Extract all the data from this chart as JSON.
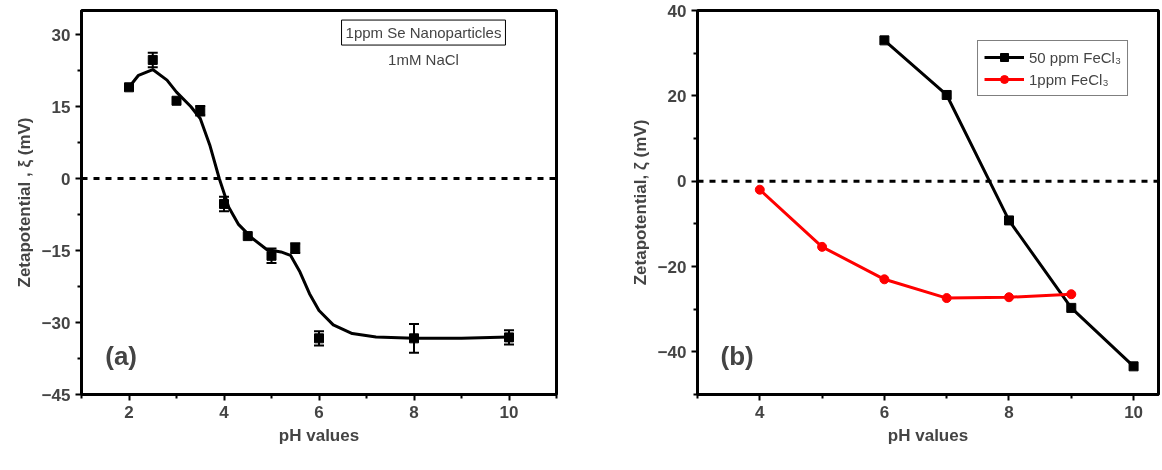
{
  "chart_data": [
    {
      "type": "scatter",
      "xlabel": "pH values",
      "ylabel": "Zetapotential , ξ (mV)",
      "xlim": [
        1,
        11
      ],
      "ylim": [
        -45,
        35
      ],
      "xticks": [
        {
          "value": 1,
          "label": null
        },
        2,
        {
          "value": 3,
          "label": null
        },
        4,
        {
          "value": 5,
          "label": null
        },
        6,
        {
          "value": 7,
          "label": null
        },
        8,
        {
          "value": 9,
          "label": null
        },
        10,
        {
          "value": 11,
          "label": null
        }
      ],
      "yticks": [
        -45,
        {
          "value": -37.5,
          "label": null
        },
        -30,
        {
          "value": -22.5,
          "label": null
        },
        -15,
        {
          "value": -7.5,
          "label": null
        },
        0,
        {
          "value": 7.5,
          "label": null
        },
        15,
        {
          "value": 22.5,
          "label": null
        },
        30
      ],
      "grid": false,
      "marker": "square",
      "series": [
        {
          "type": "scatter",
          "color": "#000000",
          "x": [
            2,
            2.5,
            3,
            3.5,
            4,
            4.5,
            5,
            5.5,
            6,
            8,
            10
          ],
          "values": [
            19,
            24.7,
            16.2,
            14.1,
            -5.3,
            -12,
            -16.1,
            -14.5,
            -33.3,
            -33.3,
            -33.1
          ],
          "errors": [
            null,
            1.5,
            null,
            1,
            1.5,
            null,
            1.5,
            1,
            1.5,
            3,
            1.5
          ]
        },
        {
          "type": "line",
          "color": "#000000",
          "marker": "none",
          "x": [
            2,
            2.2,
            2.5,
            2.8,
            3,
            3.3,
            3.5,
            3.7,
            3.9,
            4.1,
            4.3,
            4.6,
            4.9,
            5.2,
            5.4,
            5.6,
            5.8,
            6,
            6.3,
            6.7,
            7.2,
            8,
            9,
            10
          ],
          "values": [
            19,
            21.5,
            22.7,
            20.5,
            18,
            15,
            12.5,
            7,
            0,
            -6,
            -9.5,
            -12.5,
            -14.8,
            -15.3,
            -16,
            -19.5,
            -24,
            -27.5,
            -30.5,
            -32.3,
            -33,
            -33.3,
            -33.3,
            -33
          ]
        }
      ],
      "ref_lines": [
        {
          "axis": "y",
          "value": 0,
          "color": "#000000",
          "line_style": "dashed"
        }
      ],
      "annotations": [
        "1ppm Se Nanoparticles",
        "1mM NaCl",
        "(a)"
      ]
    },
    {
      "type": "line",
      "xlabel": "pH values",
      "ylabel": "Zetapotential, ζ (mV)",
      "xlim": [
        3,
        10.4
      ],
      "ylim": [
        -50,
        40
      ],
      "xticks": [
        {
          "value": 3,
          "label": null
        },
        4,
        {
          "value": 5,
          "label": null
        },
        6,
        {
          "value": 7,
          "label": null
        },
        8,
        {
          "value": 9,
          "label": null
        },
        10
      ],
      "yticks": [
        {
          "value": -50,
          "label": null
        },
        -40,
        {
          "value": -30,
          "label": null
        },
        -20,
        {
          "value": -10,
          "label": null
        },
        0,
        {
          "value": 10,
          "label": null
        },
        20,
        {
          "value": 30,
          "label": null
        },
        40
      ],
      "grid": false,
      "legend": "top right",
      "line_style": "solid",
      "series": [
        {
          "name": "50 ppm FeCl₃",
          "color": "#000000",
          "marker": "square",
          "x": [
            6,
            7,
            8,
            9,
            10
          ],
          "values": [
            33,
            20.2,
            -9.2,
            -29.7,
            -43.4
          ]
        },
        {
          "name": "1ppm FeCl₃",
          "color": "#ff0000",
          "marker": "circle",
          "x": [
            4,
            5,
            6,
            7,
            8,
            9
          ],
          "values": [
            -2,
            -15.4,
            -23,
            -27.4,
            -27.2,
            -26.5
          ]
        }
      ],
      "ref_lines": [
        {
          "axis": "y",
          "value": 0,
          "color": "#000000",
          "line_style": "dashed"
        }
      ],
      "annotations": [
        "(b)"
      ]
    }
  ]
}
